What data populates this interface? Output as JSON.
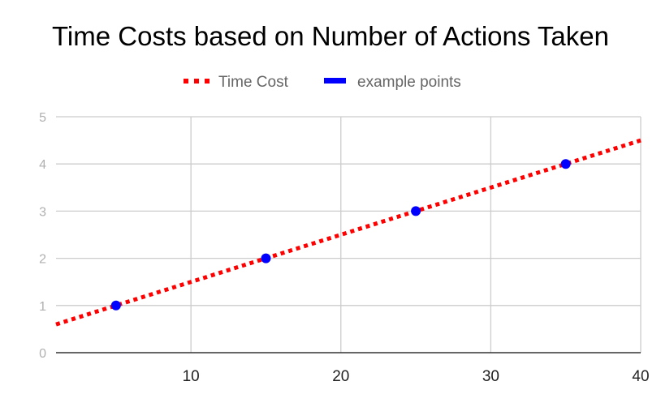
{
  "chart_data": {
    "type": "scatter",
    "title": "Time Costs based on Number of Actions Taken",
    "xlabel": "",
    "ylabel": "",
    "xlim": [
      1,
      40
    ],
    "ylim": [
      0,
      5
    ],
    "x_ticks": [
      10,
      20,
      30,
      40
    ],
    "y_ticks": [
      0,
      1,
      2,
      3,
      4,
      5
    ],
    "grid": true,
    "legend_position": "top",
    "series": [
      {
        "name": "Time Cost",
        "kind": "trendline",
        "style": "dotted",
        "color": "#ff0000",
        "x": [
          1,
          40
        ],
        "y": [
          0.6,
          4.5
        ]
      },
      {
        "name": "example points",
        "kind": "points",
        "color": "#0000ff",
        "x": [
          5,
          15,
          25,
          35
        ],
        "y": [
          1,
          2,
          3,
          4
        ]
      }
    ]
  }
}
